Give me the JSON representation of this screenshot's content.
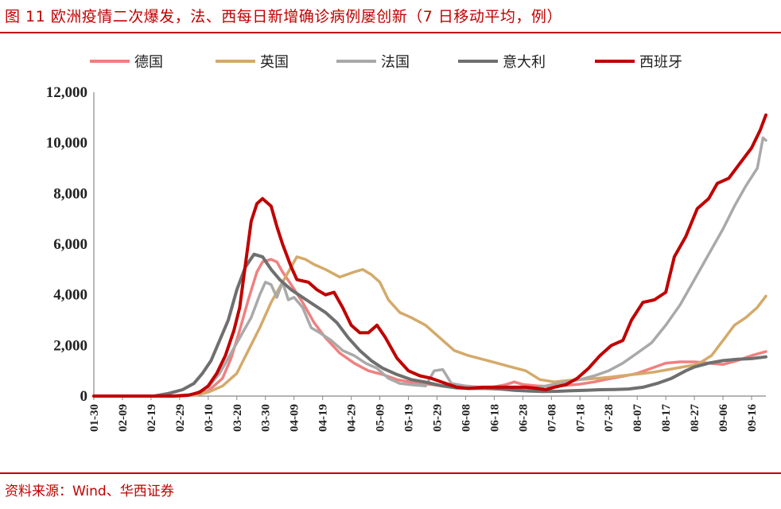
{
  "header": {
    "title": "图 11 欧洲疫情二次爆发，法、西每日新增确诊病例屡创新（7 日移动平均，例）"
  },
  "footer": {
    "source": "资料来源：Wind、华西证券"
  },
  "chart_data": {
    "type": "line",
    "title": "图 11 欧洲疫情二次爆发，法、西每日新增确诊病例屡创新（7 日移动平均，例）",
    "xlabel": "",
    "ylabel": "",
    "ylim": [
      0,
      12000
    ],
    "yticks": [
      "0",
      "2,000",
      "4,000",
      "6,000",
      "8,000",
      "10,000",
      "12,000"
    ],
    "ytick_values": [
      0,
      2000,
      4000,
      6000,
      8000,
      10000,
      12000
    ],
    "xticks": [
      "01-30",
      "02-09",
      "02-19",
      "02-29",
      "03-10",
      "03-20",
      "03-30",
      "04-09",
      "04-19",
      "04-29",
      "05-09",
      "05-19",
      "05-29",
      "06-08",
      "06-18",
      "06-28",
      "07-08",
      "07-18",
      "07-28",
      "08-07",
      "08-17",
      "08-27",
      "09-06",
      "09-16"
    ],
    "x_start": "01-30",
    "x_end": "09-21",
    "grid": false,
    "legend_position": "top",
    "series": [
      {
        "name": "德国",
        "color": "#f08080",
        "width": 3.5,
        "points": [
          [
            "01-30",
            0
          ],
          [
            "02-24",
            0
          ],
          [
            "03-05",
            60
          ],
          [
            "03-10",
            200
          ],
          [
            "03-15",
            700
          ],
          [
            "03-18",
            1500
          ],
          [
            "03-21",
            2600
          ],
          [
            "03-24",
            3800
          ],
          [
            "03-27",
            4900
          ],
          [
            "03-29",
            5300
          ],
          [
            "04-01",
            5400
          ],
          [
            "04-03",
            5300
          ],
          [
            "04-05",
            4900
          ],
          [
            "04-08",
            4400
          ],
          [
            "04-12",
            3700
          ],
          [
            "04-16",
            2900
          ],
          [
            "04-20",
            2300
          ],
          [
            "04-25",
            1700
          ],
          [
            "04-30",
            1300
          ],
          [
            "05-05",
            1000
          ],
          [
            "05-10",
            850
          ],
          [
            "05-15",
            650
          ],
          [
            "05-20",
            550
          ],
          [
            "05-25",
            480
          ],
          [
            "06-01",
            380
          ],
          [
            "06-08",
            330
          ],
          [
            "06-15",
            300
          ],
          [
            "06-22",
            450
          ],
          [
            "06-25",
            560
          ],
          [
            "06-28",
            460
          ],
          [
            "07-03",
            400
          ],
          [
            "07-08",
            380
          ],
          [
            "07-13",
            420
          ],
          [
            "07-18",
            470
          ],
          [
            "07-23",
            560
          ],
          [
            "07-28",
            680
          ],
          [
            "08-02",
            780
          ],
          [
            "08-07",
            900
          ],
          [
            "08-12",
            1100
          ],
          [
            "08-17",
            1300
          ],
          [
            "08-22",
            1350
          ],
          [
            "08-27",
            1350
          ],
          [
            "09-01",
            1300
          ],
          [
            "09-06",
            1250
          ],
          [
            "09-11",
            1400
          ],
          [
            "09-16",
            1600
          ],
          [
            "09-21",
            1760
          ]
        ]
      },
      {
        "name": "英国",
        "color": "#d4aa6a",
        "width": 3.5,
        "points": [
          [
            "01-30",
            0
          ],
          [
            "02-29",
            0
          ],
          [
            "03-06",
            40
          ],
          [
            "03-10",
            150
          ],
          [
            "03-15",
            400
          ],
          [
            "03-20",
            900
          ],
          [
            "03-24",
            1800
          ],
          [
            "03-28",
            2700
          ],
          [
            "04-01",
            3700
          ],
          [
            "04-05",
            4500
          ],
          [
            "04-08",
            5100
          ],
          [
            "04-10",
            5500
          ],
          [
            "04-13",
            5400
          ],
          [
            "04-16",
            5200
          ],
          [
            "04-20",
            5000
          ],
          [
            "04-25",
            4700
          ],
          [
            "04-30",
            4900
          ],
          [
            "05-03",
            5000
          ],
          [
            "05-06",
            4800
          ],
          [
            "05-09",
            4500
          ],
          [
            "05-12",
            3800
          ],
          [
            "05-16",
            3300
          ],
          [
            "05-20",
            3100
          ],
          [
            "05-25",
            2800
          ],
          [
            "05-30",
            2300
          ],
          [
            "06-04",
            1800
          ],
          [
            "06-09",
            1600
          ],
          [
            "06-14",
            1450
          ],
          [
            "06-19",
            1300
          ],
          [
            "06-24",
            1150
          ],
          [
            "06-29",
            1000
          ],
          [
            "07-04",
            650
          ],
          [
            "07-09",
            560
          ],
          [
            "07-14",
            620
          ],
          [
            "07-19",
            660
          ],
          [
            "07-24",
            700
          ],
          [
            "07-29",
            750
          ],
          [
            "08-03",
            820
          ],
          [
            "08-08",
            880
          ],
          [
            "08-13",
            950
          ],
          [
            "08-18",
            1050
          ],
          [
            "08-23",
            1150
          ],
          [
            "08-28",
            1250
          ],
          [
            "09-02",
            1600
          ],
          [
            "09-06",
            2200
          ],
          [
            "09-10",
            2800
          ],
          [
            "09-14",
            3100
          ],
          [
            "09-18",
            3500
          ],
          [
            "09-21",
            3950
          ]
        ]
      },
      {
        "name": "法国",
        "color": "#a9a9a9",
        "width": 3.5,
        "points": [
          [
            "01-30",
            0
          ],
          [
            "02-27",
            0
          ],
          [
            "03-05",
            80
          ],
          [
            "03-10",
            350
          ],
          [
            "03-14",
            900
          ],
          [
            "03-18",
            1700
          ],
          [
            "03-22",
            2500
          ],
          [
            "03-25",
            3100
          ],
          [
            "03-28",
            4000
          ],
          [
            "03-30",
            4500
          ],
          [
            "04-01",
            4400
          ],
          [
            "04-03",
            3900
          ],
          [
            "04-05",
            4500
          ],
          [
            "04-07",
            3800
          ],
          [
            "04-09",
            3900
          ],
          [
            "04-12",
            3500
          ],
          [
            "04-15",
            2700
          ],
          [
            "04-18",
            2500
          ],
          [
            "04-22",
            2200
          ],
          [
            "04-26",
            1800
          ],
          [
            "04-30",
            1600
          ],
          [
            "05-04",
            1300
          ],
          [
            "05-08",
            1100
          ],
          [
            "05-12",
            700
          ],
          [
            "05-16",
            500
          ],
          [
            "05-20",
            450
          ],
          [
            "05-25",
            400
          ],
          [
            "05-28",
            1000
          ],
          [
            "05-31",
            1050
          ],
          [
            "06-03",
            500
          ],
          [
            "06-08",
            400
          ],
          [
            "06-13",
            350
          ],
          [
            "06-18",
            300
          ],
          [
            "06-23",
            280
          ],
          [
            "06-28",
            300
          ],
          [
            "07-03",
            320
          ],
          [
            "07-08",
            450
          ],
          [
            "07-13",
            550
          ],
          [
            "07-18",
            650
          ],
          [
            "07-23",
            800
          ],
          [
            "07-28",
            1000
          ],
          [
            "08-02",
            1300
          ],
          [
            "08-07",
            1700
          ],
          [
            "08-12",
            2100
          ],
          [
            "08-17",
            2800
          ],
          [
            "08-22",
            3600
          ],
          [
            "08-27",
            4600
          ],
          [
            "09-01",
            5600
          ],
          [
            "09-06",
            6600
          ],
          [
            "09-10",
            7500
          ],
          [
            "09-14",
            8300
          ],
          [
            "09-18",
            9000
          ],
          [
            "09-20",
            10200
          ],
          [
            "09-21",
            10100
          ]
        ]
      },
      {
        "name": "意大利",
        "color": "#6f6f6f",
        "width": 4,
        "points": [
          [
            "01-30",
            0
          ],
          [
            "02-20",
            0
          ],
          [
            "02-25",
            100
          ],
          [
            "03-01",
            250
          ],
          [
            "03-05",
            500
          ],
          [
            "03-08",
            900
          ],
          [
            "03-11",
            1400
          ],
          [
            "03-14",
            2200
          ],
          [
            "03-17",
            3000
          ],
          [
            "03-20",
            4200
          ],
          [
            "03-23",
            5100
          ],
          [
            "03-26",
            5600
          ],
          [
            "03-29",
            5500
          ],
          [
            "04-01",
            5000
          ],
          [
            "04-04",
            4600
          ],
          [
            "04-08",
            4200
          ],
          [
            "04-12",
            3900
          ],
          [
            "04-16",
            3600
          ],
          [
            "04-20",
            3300
          ],
          [
            "04-24",
            2900
          ],
          [
            "04-28",
            2300
          ],
          [
            "05-02",
            1800
          ],
          [
            "05-06",
            1400
          ],
          [
            "05-10",
            1100
          ],
          [
            "05-15",
            850
          ],
          [
            "05-20",
            650
          ],
          [
            "05-25",
            550
          ],
          [
            "05-31",
            400
          ],
          [
            "06-05",
            320
          ],
          [
            "06-10",
            300
          ],
          [
            "06-15",
            300
          ],
          [
            "06-20",
            280
          ],
          [
            "06-25",
            230
          ],
          [
            "06-30",
            200
          ],
          [
            "07-05",
            180
          ],
          [
            "07-10",
            190
          ],
          [
            "07-15",
            210
          ],
          [
            "07-20",
            230
          ],
          [
            "07-25",
            250
          ],
          [
            "07-30",
            260
          ],
          [
            "08-04",
            280
          ],
          [
            "08-09",
            350
          ],
          [
            "08-14",
            500
          ],
          [
            "08-19",
            700
          ],
          [
            "08-24",
            1000
          ],
          [
            "08-27",
            1150
          ],
          [
            "09-01",
            1300
          ],
          [
            "09-06",
            1400
          ],
          [
            "09-11",
            1450
          ],
          [
            "09-16",
            1480
          ],
          [
            "09-21",
            1550
          ]
        ]
      },
      {
        "name": "西班牙",
        "color": "#c00000",
        "width": 4,
        "points": [
          [
            "01-30",
            0
          ],
          [
            "02-27",
            0
          ],
          [
            "03-03",
            30
          ],
          [
            "03-07",
            150
          ],
          [
            "03-10",
            400
          ],
          [
            "03-13",
            900
          ],
          [
            "03-16",
            1600
          ],
          [
            "03-19",
            2600
          ],
          [
            "03-21",
            3500
          ],
          [
            "03-23",
            5200
          ],
          [
            "03-25",
            6900
          ],
          [
            "03-27",
            7600
          ],
          [
            "03-29",
            7800
          ],
          [
            "04-01",
            7500
          ],
          [
            "04-03",
            6700
          ],
          [
            "04-05",
            6000
          ],
          [
            "04-08",
            5100
          ],
          [
            "04-10",
            4600
          ],
          [
            "04-14",
            4500
          ],
          [
            "04-17",
            4200
          ],
          [
            "04-20",
            4000
          ],
          [
            "04-23",
            4100
          ],
          [
            "04-26",
            3500
          ],
          [
            "04-29",
            2800
          ],
          [
            "05-02",
            2500
          ],
          [
            "05-05",
            2500
          ],
          [
            "05-08",
            2800
          ],
          [
            "05-11",
            2300
          ],
          [
            "05-15",
            1500
          ],
          [
            "05-19",
            1000
          ],
          [
            "05-23",
            800
          ],
          [
            "05-27",
            700
          ],
          [
            "06-01",
            500
          ],
          [
            "06-05",
            350
          ],
          [
            "06-09",
            300
          ],
          [
            "06-14",
            350
          ],
          [
            "06-19",
            350
          ],
          [
            "06-24",
            350
          ],
          [
            "06-29",
            350
          ],
          [
            "07-03",
            300
          ],
          [
            "07-06",
            250
          ],
          [
            "07-09",
            350
          ],
          [
            "07-13",
            450
          ],
          [
            "07-17",
            700
          ],
          [
            "07-21",
            1100
          ],
          [
            "07-25",
            1600
          ],
          [
            "07-29",
            2000
          ],
          [
            "08-02",
            2200
          ],
          [
            "08-05",
            3000
          ],
          [
            "08-09",
            3700
          ],
          [
            "08-13",
            3800
          ],
          [
            "08-17",
            4100
          ],
          [
            "08-20",
            5500
          ],
          [
            "08-24",
            6300
          ],
          [
            "08-28",
            7400
          ],
          [
            "09-01",
            7800
          ],
          [
            "09-04",
            8400
          ],
          [
            "09-08",
            8600
          ],
          [
            "09-12",
            9200
          ],
          [
            "09-16",
            9800
          ],
          [
            "09-19",
            10500
          ],
          [
            "09-21",
            11100
          ]
        ]
      }
    ]
  }
}
